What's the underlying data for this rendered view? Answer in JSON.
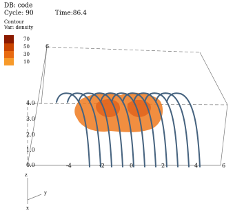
{
  "header": {
    "db": "DB: code",
    "cycle": "Cycle: 90",
    "time": "Time:86.4"
  },
  "legend": {
    "title": "Contour",
    "var": "Var: density",
    "levels": [
      "70",
      "50",
      "30",
      "10"
    ]
  },
  "axes": {
    "vertical": [
      "6",
      "4.0",
      "3.0",
      "2.0",
      "1.0",
      "0.0"
    ],
    "horizontal": [
      "-4",
      "-2",
      "0",
      "2",
      "4",
      "6"
    ],
    "triad": [
      "z",
      "y",
      "x"
    ]
  }
}
